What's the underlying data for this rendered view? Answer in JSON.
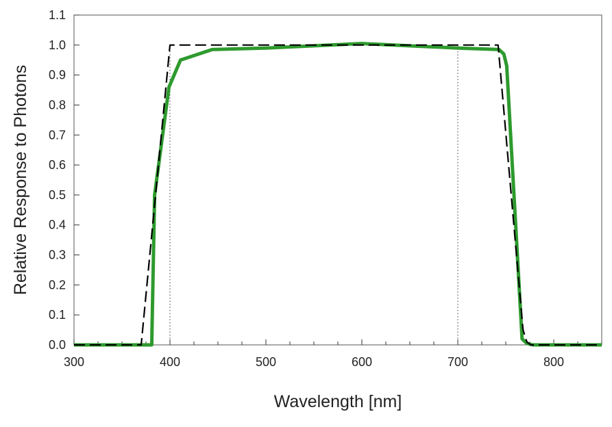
{
  "chart_data": {
    "type": "line",
    "title": "",
    "xlabel": "Wavelength [nm]",
    "ylabel": "Relative Response to Photons",
    "xlim": [
      300,
      850
    ],
    "ylim": [
      0,
      1.1
    ],
    "xticks": [
      300,
      400,
      500,
      600,
      700,
      800
    ],
    "xtick_labels": [
      "300",
      "400",
      "500",
      "600",
      "700",
      "800"
    ],
    "x_minor_step": 25,
    "yticks": [
      0,
      0.1,
      0.2,
      0.3,
      0.4,
      0.5,
      0.6,
      0.7,
      0.8,
      0.9,
      1.0,
      1.1
    ],
    "ytick_labels": [
      "0.0",
      "0.1",
      "0.2",
      "0.3",
      "0.4",
      "0.5",
      "0.6",
      "0.7",
      "0.8",
      "0.9",
      "1.0",
      "1.1"
    ],
    "grid": false,
    "legend": "none",
    "series": [
      {
        "style": "solid",
        "color": "#2e9a2e",
        "x": [
          300,
          381,
          384,
          399,
          411,
          444,
          500,
          600,
          700,
          743,
          748,
          751,
          767,
          772,
          778,
          850
        ],
        "y": [
          0,
          0,
          0.5,
          0.86,
          0.95,
          0.985,
          0.99,
          1.005,
          0.99,
          0.985,
          0.97,
          0.93,
          0.02,
          0.005,
          0,
          0
        ]
      },
      {
        "style": "dashed",
        "color": "#000000",
        "x": [
          300,
          370,
          400,
          742,
          768,
          772,
          776,
          850
        ],
        "y": [
          0,
          0,
          1.0,
          1.0,
          0.05,
          0.01,
          0,
          0
        ]
      }
    ],
    "vlines": [
      {
        "x": 400,
        "ymax": 1.0,
        "style": "dotted"
      },
      {
        "x": 700,
        "ymax": 1.0,
        "style": "dotted"
      }
    ]
  }
}
